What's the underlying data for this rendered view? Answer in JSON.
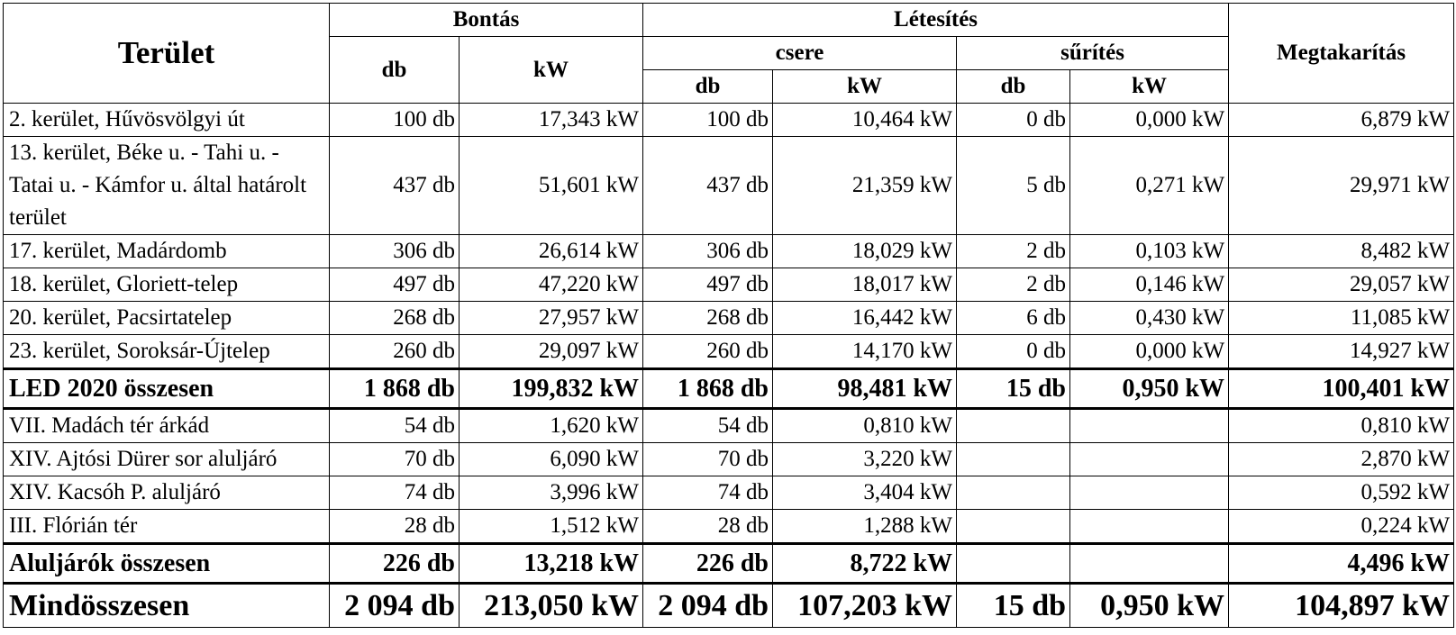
{
  "header": {
    "terulet": "Terület",
    "bontas": "Bontás",
    "letesites": "Létesítés",
    "megtakaritas": "Megtakarítás",
    "csere": "csere",
    "surites": "sűrítés",
    "db": "db",
    "kw": "kW"
  },
  "group1": [
    {
      "name": "2. kerület, Hűvösvölgyi út",
      "b_db": "100 db",
      "b_kw": "17,343 kW",
      "c_db": "100 db",
      "c_kw": "10,464 kW",
      "s_db": "0 db",
      "s_kw": "0,000 kW",
      "m": "6,879 kW"
    },
    {
      "name": "13. kerület, Béke u. - Tahi u. - Tatai u. - Kámfor u. által határolt terület",
      "b_db": "437 db",
      "b_kw": "51,601 kW",
      "c_db": "437 db",
      "c_kw": "21,359 kW",
      "s_db": "5 db",
      "s_kw": "0,271 kW",
      "m": "29,971 kW"
    },
    {
      "name": "17. kerület, Madárdomb",
      "b_db": "306 db",
      "b_kw": "26,614 kW",
      "c_db": "306 db",
      "c_kw": "18,029 kW",
      "s_db": "2 db",
      "s_kw": "0,103 kW",
      "m": "8,482 kW"
    },
    {
      "name": "18. kerület, Gloriett-telep",
      "b_db": "497 db",
      "b_kw": "47,220 kW",
      "c_db": "497 db",
      "c_kw": "18,017 kW",
      "s_db": "2 db",
      "s_kw": "0,146 kW",
      "m": "29,057 kW"
    },
    {
      "name": "20. kerület, Pacsirtatelep",
      "b_db": "268 db",
      "b_kw": "27,957 kW",
      "c_db": "268 db",
      "c_kw": "16,442 kW",
      "s_db": "6 db",
      "s_kw": "0,430 kW",
      "m": "11,085 kW"
    },
    {
      "name": "23. kerület, Soroksár-Újtelep",
      "b_db": "260 db",
      "b_kw": "29,097 kW",
      "c_db": "260 db",
      "c_kw": "14,170 kW",
      "s_db": "0 db",
      "s_kw": "0,000 kW",
      "m": "14,927 kW"
    }
  ],
  "sum1": {
    "name": "LED 2020 összesen",
    "b_db": "1 868 db",
    "b_kw": "199,832 kW",
    "c_db": "1 868 db",
    "c_kw": "98,481 kW",
    "s_db": "15 db",
    "s_kw": "0,950 kW",
    "m": "100,401 kW"
  },
  "group2": [
    {
      "name": "VII. Madách tér árkád",
      "b_db": "54 db",
      "b_kw": "1,620 kW",
      "c_db": "54 db",
      "c_kw": "0,810 kW",
      "s_db": "",
      "s_kw": "",
      "m": "0,810 kW"
    },
    {
      "name": "XIV. Ajtósi Dürer sor aluljáró",
      "b_db": "70 db",
      "b_kw": "6,090 kW",
      "c_db": "70 db",
      "c_kw": "3,220 kW",
      "s_db": "",
      "s_kw": "",
      "m": "2,870 kW"
    },
    {
      "name": "XIV. Kacsóh P. aluljáró",
      "b_db": "74 db",
      "b_kw": "3,996 kW",
      "c_db": "74 db",
      "c_kw": "3,404 kW",
      "s_db": "",
      "s_kw": "",
      "m": "0,592 kW"
    },
    {
      "name": "III. Flórián tér",
      "b_db": "28 db",
      "b_kw": "1,512 kW",
      "c_db": "28 db",
      "c_kw": "1,288 kW",
      "s_db": "",
      "s_kw": "",
      "m": "0,224 kW"
    }
  ],
  "sum2": {
    "name": "Aluljárók összesen",
    "b_db": "226 db",
    "b_kw": "13,218 kW",
    "c_db": "226 db",
    "c_kw": "8,722 kW",
    "s_db": "",
    "s_kw": "",
    "m": "4,496 kW"
  },
  "grand": {
    "name": "Mindösszesen",
    "b_db": "2 094 db",
    "b_kw": "213,050 kW",
    "c_db": "2 094 db",
    "c_kw": "107,203 kW",
    "s_db": "15 db",
    "s_kw": "0,950 kW",
    "m": "104,897 kW"
  }
}
